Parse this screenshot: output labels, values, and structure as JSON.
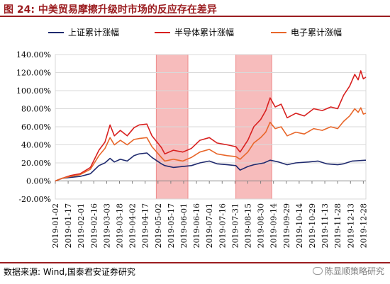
{
  "header": {
    "title": "图 24:   中美贸易摩擦升级时市场的反应存在差异"
  },
  "footer": {
    "source": "数据来源:  Wind,国泰君安证券研究",
    "watermark": "陈显顺策略研究"
  },
  "colors": {
    "title": "#9b1d20",
    "highlight": "#f4a6a6"
  },
  "chart_data": {
    "type": "line",
    "title": "",
    "xlabel": "",
    "ylabel": "",
    "ylim": [
      -20,
      140
    ],
    "yticks": [
      -20,
      0,
      20,
      40,
      60,
      80,
      100,
      120,
      140
    ],
    "ytick_labels": [
      "-20.00%",
      "0.00%",
      "20.00%",
      "40.00%",
      "60.00%",
      "80.00%",
      "100.00%",
      "120.00%",
      "140.00%"
    ],
    "xticks": [
      "2019-01-02",
      "2019-01-17",
      "2019-02-01",
      "2019-02-16",
      "2019-03-03",
      "2019-03-18",
      "2019-04-02",
      "2019-04-17",
      "2019-05-02",
      "2019-05-17",
      "2019-06-01",
      "2019-06-16",
      "2019-07-01",
      "2019-07-16",
      "2019-07-31",
      "2019-08-15",
      "2019-08-30",
      "2019-09-14",
      "2019-09-29",
      "2019-10-14",
      "2019-10-29",
      "2019-11-13",
      "2019-11-28",
      "2019-12-13",
      "2019-12-28"
    ],
    "grid": true,
    "legend_position": "top",
    "highlight_ranges": [
      [
        "2019-04-30",
        "2019-06-06"
      ],
      [
        "2019-08-01",
        "2019-09-12"
      ]
    ],
    "series": [
      {
        "name": "上证累计涨幅",
        "color": "#1f2a6e",
        "points": [
          [
            "2019-01-02",
            0
          ],
          [
            "2019-01-10",
            3
          ],
          [
            "2019-01-20",
            4
          ],
          [
            "2019-01-31",
            5
          ],
          [
            "2019-02-12",
            8
          ],
          [
            "2019-02-22",
            17
          ],
          [
            "2019-03-01",
            20
          ],
          [
            "2019-03-07",
            25
          ],
          [
            "2019-03-12",
            21
          ],
          [
            "2019-03-19",
            24
          ],
          [
            "2019-03-27",
            22
          ],
          [
            "2019-04-04",
            28
          ],
          [
            "2019-04-10",
            30
          ],
          [
            "2019-04-19",
            31
          ],
          [
            "2019-04-25",
            26
          ],
          [
            "2019-05-06",
            19
          ],
          [
            "2019-05-10",
            17
          ],
          [
            "2019-05-20",
            15
          ],
          [
            "2019-05-31",
            16
          ],
          [
            "2019-06-10",
            17
          ],
          [
            "2019-06-20",
            20
          ],
          [
            "2019-07-01",
            22
          ],
          [
            "2019-07-10",
            19
          ],
          [
            "2019-07-22",
            18
          ],
          [
            "2019-08-01",
            17
          ],
          [
            "2019-08-06",
            12
          ],
          [
            "2019-08-15",
            16
          ],
          [
            "2019-08-22",
            18
          ],
          [
            "2019-09-03",
            20
          ],
          [
            "2019-09-10",
            23
          ],
          [
            "2019-09-20",
            21
          ],
          [
            "2019-09-30",
            18
          ],
          [
            "2019-10-10",
            20
          ],
          [
            "2019-10-25",
            21
          ],
          [
            "2019-11-05",
            22
          ],
          [
            "2019-11-15",
            19
          ],
          [
            "2019-11-28",
            18
          ],
          [
            "2019-12-05",
            19
          ],
          [
            "2019-12-15",
            22
          ],
          [
            "2019-12-31",
            23
          ]
        ]
      },
      {
        "name": "半导体累计涨幅",
        "color": "#d8201f",
        "points": [
          [
            "2019-01-02",
            0
          ],
          [
            "2019-01-10",
            3
          ],
          [
            "2019-01-20",
            6
          ],
          [
            "2019-01-31",
            8
          ],
          [
            "2019-02-12",
            15
          ],
          [
            "2019-02-22",
            34
          ],
          [
            "2019-03-01",
            43
          ],
          [
            "2019-03-07",
            62
          ],
          [
            "2019-03-12",
            50
          ],
          [
            "2019-03-19",
            56
          ],
          [
            "2019-03-27",
            50
          ],
          [
            "2019-04-04",
            59
          ],
          [
            "2019-04-10",
            62
          ],
          [
            "2019-04-19",
            63
          ],
          [
            "2019-04-25",
            50
          ],
          [
            "2019-05-06",
            37
          ],
          [
            "2019-05-10",
            30
          ],
          [
            "2019-05-20",
            34
          ],
          [
            "2019-05-31",
            32
          ],
          [
            "2019-06-10",
            36
          ],
          [
            "2019-06-20",
            45
          ],
          [
            "2019-07-01",
            48
          ],
          [
            "2019-07-10",
            42
          ],
          [
            "2019-07-22",
            40
          ],
          [
            "2019-08-01",
            38
          ],
          [
            "2019-08-06",
            32
          ],
          [
            "2019-08-15",
            45
          ],
          [
            "2019-08-22",
            60
          ],
          [
            "2019-08-30",
            68
          ],
          [
            "2019-09-05",
            78
          ],
          [
            "2019-09-10",
            92
          ],
          [
            "2019-09-16",
            82
          ],
          [
            "2019-09-23",
            85
          ],
          [
            "2019-09-30",
            70
          ],
          [
            "2019-10-10",
            75
          ],
          [
            "2019-10-20",
            72
          ],
          [
            "2019-10-31",
            80
          ],
          [
            "2019-11-10",
            78
          ],
          [
            "2019-11-20",
            82
          ],
          [
            "2019-11-28",
            80
          ],
          [
            "2019-12-05",
            95
          ],
          [
            "2019-12-12",
            105
          ],
          [
            "2019-12-18",
            118
          ],
          [
            "2019-12-22",
            112
          ],
          [
            "2019-12-25",
            122
          ],
          [
            "2019-12-28",
            113
          ],
          [
            "2019-12-31",
            115
          ]
        ]
      },
      {
        "name": "电子累计涨幅",
        "color": "#e8662a",
        "points": [
          [
            "2019-01-02",
            0
          ],
          [
            "2019-01-10",
            3
          ],
          [
            "2019-01-20",
            5
          ],
          [
            "2019-01-31",
            7
          ],
          [
            "2019-02-12",
            13
          ],
          [
            "2019-02-22",
            28
          ],
          [
            "2019-03-01",
            36
          ],
          [
            "2019-03-07",
            48
          ],
          [
            "2019-03-12",
            40
          ],
          [
            "2019-03-19",
            45
          ],
          [
            "2019-03-27",
            40
          ],
          [
            "2019-04-04",
            46
          ],
          [
            "2019-04-10",
            47
          ],
          [
            "2019-04-19",
            48
          ],
          [
            "2019-04-25",
            38
          ],
          [
            "2019-05-06",
            26
          ],
          [
            "2019-05-10",
            22
          ],
          [
            "2019-05-20",
            24
          ],
          [
            "2019-05-31",
            22
          ],
          [
            "2019-06-10",
            26
          ],
          [
            "2019-06-20",
            32
          ],
          [
            "2019-07-01",
            35
          ],
          [
            "2019-07-10",
            30
          ],
          [
            "2019-07-22",
            28
          ],
          [
            "2019-08-01",
            27
          ],
          [
            "2019-08-06",
            24
          ],
          [
            "2019-08-15",
            32
          ],
          [
            "2019-08-22",
            42
          ],
          [
            "2019-08-30",
            48
          ],
          [
            "2019-09-05",
            54
          ],
          [
            "2019-09-10",
            65
          ],
          [
            "2019-09-16",
            58
          ],
          [
            "2019-09-23",
            60
          ],
          [
            "2019-09-30",
            50
          ],
          [
            "2019-10-10",
            54
          ],
          [
            "2019-10-20",
            52
          ],
          [
            "2019-10-31",
            58
          ],
          [
            "2019-11-10",
            56
          ],
          [
            "2019-11-20",
            60
          ],
          [
            "2019-11-28",
            58
          ],
          [
            "2019-12-05",
            66
          ],
          [
            "2019-12-12",
            72
          ],
          [
            "2019-12-18",
            80
          ],
          [
            "2019-12-22",
            76
          ],
          [
            "2019-12-25",
            81
          ],
          [
            "2019-12-28",
            74
          ],
          [
            "2019-12-31",
            75
          ]
        ]
      }
    ]
  }
}
